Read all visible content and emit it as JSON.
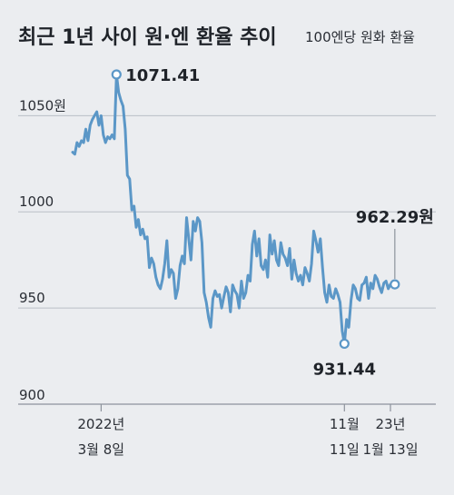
{
  "title": "최근 1년 사이 원·엔 환율 추이",
  "subtitle": "100엔당 원화 환율",
  "colors": {
    "line": "#5b97c7",
    "background": "#ebedf0",
    "grid": "#b9bec6"
  },
  "chart_data": {
    "type": "line",
    "title": "최근 1년 사이 원·엔 환율 추이",
    "ylabel": "100엔당 원화 환율",
    "ylim": [
      900,
      1071.41
    ],
    "yticks": [
      {
        "value": 1050,
        "label": "1050원"
      },
      {
        "value": 1000,
        "label": "1000"
      },
      {
        "value": 950,
        "label": "950"
      },
      {
        "value": 900,
        "label": "900"
      }
    ],
    "xticks": [
      {
        "index": 13,
        "line1": "2022년",
        "line2": "3월 8일"
      },
      {
        "index": 124,
        "line1": "11월",
        "line2": "11일"
      },
      {
        "index": 145,
        "line1": "23년",
        "line2": "1월 13일"
      }
    ],
    "annotations": [
      {
        "index": 20,
        "label": "1071.41",
        "value": 1071.41
      },
      {
        "index": 124,
        "label": "931.44",
        "value": 931.44
      },
      {
        "index": 147,
        "label": "962.29원",
        "value": 962.29
      }
    ],
    "series": [
      {
        "values": [
          1031,
          1030,
          1036,
          1034,
          1037,
          1036,
          1043,
          1037,
          1045,
          1048,
          1050,
          1052,
          1045,
          1050,
          1040,
          1036,
          1039,
          1038,
          1040,
          1038,
          1071.41,
          1062,
          1058,
          1055,
          1043,
          1019,
          1017,
          1001,
          1003,
          992,
          996,
          988,
          991,
          986,
          987,
          971,
          976,
          973,
          966,
          962,
          960,
          965,
          973,
          985,
          966,
          970,
          968,
          955,
          960,
          972,
          977,
          973,
          997,
          986,
          975,
          995,
          990,
          997,
          995,
          984,
          958,
          953,
          945,
          940,
          955,
          959,
          956,
          957,
          950,
          956,
          961,
          958,
          948,
          962,
          959,
          957,
          950,
          964,
          955,
          958,
          967,
          964,
          983,
          990,
          977,
          986,
          972,
          970,
          975,
          966,
          988,
          978,
          985,
          975,
          972,
          984,
          978,
          976,
          972,
          981,
          965,
          975,
          968,
          964,
          967,
          962,
          971,
          968,
          964,
          973,
          990,
          985,
          979,
          986,
          971,
          958,
          953,
          962,
          956,
          955,
          960,
          957,
          953,
          938,
          931.44,
          944,
          940,
          954,
          962,
          960,
          955,
          954,
          962,
          963,
          966,
          955,
          963,
          960,
          967,
          965,
          961,
          958,
          963,
          964,
          960,
          962.29
        ]
      }
    ]
  }
}
